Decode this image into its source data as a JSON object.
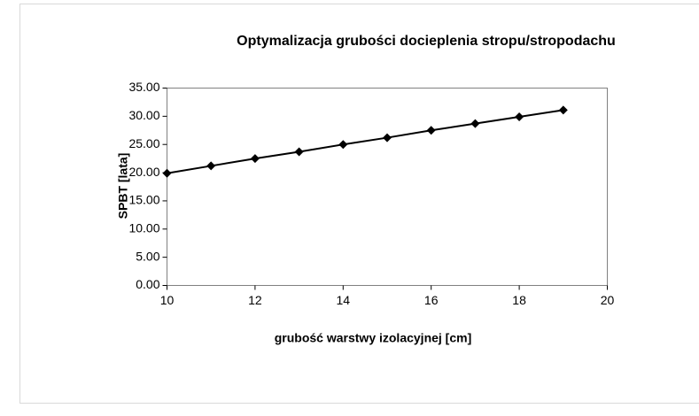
{
  "chart_data": {
    "type": "line",
    "title": "Optymalizacja grubości docieplenia stropu/stropodachu",
    "x_label": "grubość warstwy izolacyjnej [cm]",
    "y_label": "SPBT [lata]",
    "x": [
      10,
      11,
      12,
      13,
      14,
      15,
      16,
      17,
      18,
      19
    ],
    "series": [
      {
        "color": "#000000",
        "values": [
          19.9,
          21.2,
          22.5,
          23.7,
          25.0,
          26.2,
          27.5,
          28.7,
          29.9,
          31.1
        ]
      }
    ],
    "xlim": [
      10,
      20
    ],
    "xticks": [
      10,
      12,
      14,
      16,
      18,
      20
    ],
    "ylim": [
      0,
      35
    ],
    "yticks": [
      {
        "value": 0,
        "label": "0.00"
      },
      {
        "value": 5,
        "label": "5.00"
      },
      {
        "value": 10,
        "label": "10.00"
      },
      {
        "value": 15,
        "label": "15.00"
      },
      {
        "value": 20,
        "label": "20.00"
      },
      {
        "value": 25,
        "label": "25.00"
      },
      {
        "value": 30,
        "label": "30.00"
      },
      {
        "value": 35,
        "label": "35.00"
      }
    ],
    "grid": false,
    "marker": "diamond"
  }
}
